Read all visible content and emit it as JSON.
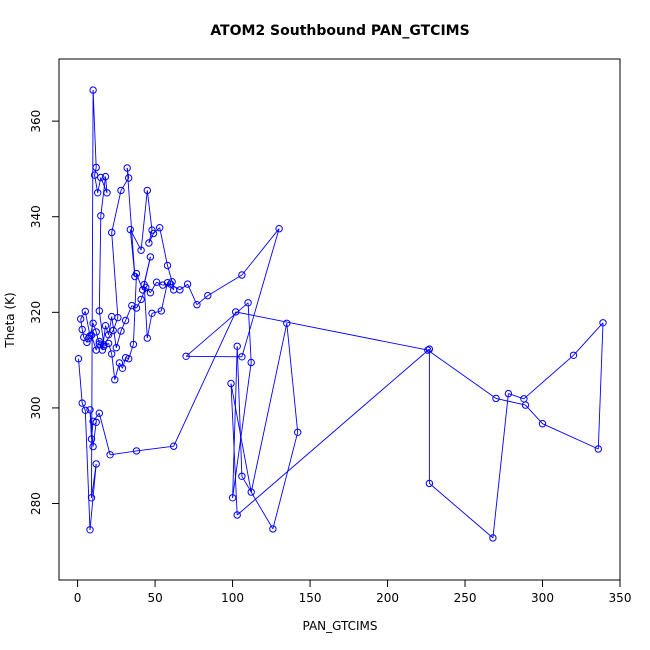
{
  "chart_data": {
    "type": "scatter",
    "title": "ATOM2 Southbound PAN_GTCIMS",
    "xlabel": "PAN_GTCIMS",
    "ylabel": "Theta (K)",
    "xlim": [
      -12,
      350
    ],
    "ylim": [
      264,
      373
    ],
    "xticks": [
      "0",
      "50",
      "100",
      "150",
      "200",
      "250",
      "300",
      "350"
    ],
    "yticks": [
      "280",
      "300",
      "320",
      "340",
      "360"
    ],
    "grid": false,
    "color": "#0000ff",
    "series": [
      {
        "x": [
          0.6,
          3,
          5,
          8,
          12,
          9,
          10,
          12,
          11,
          13,
          15,
          19,
          18,
          15,
          14,
          17,
          23,
          26,
          22,
          28,
          33,
          32,
          37,
          34,
          41,
          45,
          48,
          46,
          49,
          53,
          58,
          61,
          62,
          58,
          54,
          48,
          45,
          43,
          47,
          42,
          38,
          36,
          33,
          31,
          29,
          27,
          24,
          22,
          20,
          17,
          14,
          12,
          9,
          7,
          6,
          4,
          3,
          2,
          5,
          8,
          10,
          12,
          14,
          16,
          18,
          20,
          22,
          25,
          28,
          31,
          35,
          38,
          41,
          44,
          47,
          51,
          55,
          60,
          66,
          71,
          77,
          84,
          106,
          130,
          106,
          70,
          110,
          112,
          100,
          103,
          106,
          126,
          142,
          135,
          112,
          99,
          103,
          227,
          227,
          268,
          278,
          288,
          320,
          339,
          336,
          300,
          289,
          270,
          226,
          102,
          62,
          38,
          21,
          14,
          10,
          9,
          8,
          10,
          12
        ],
        "y": [
          310.3,
          301,
          299.5,
          274.5,
          288.3,
          281.2,
          366.5,
          350.3,
          348.7,
          345,
          348.2,
          345,
          348.4,
          340.2,
          320.3,
          313.2,
          316.2,
          318.9,
          336.7,
          345.5,
          348.1,
          350.2,
          327.5,
          337.3,
          333,
          345.5,
          337.2,
          334.5,
          336.5,
          337.7,
          329.8,
          326.4,
          324.7,
          326.2,
          320.3,
          319.8,
          314.6,
          325.8,
          331.6,
          324.7,
          328.1,
          313.3,
          310.3,
          310.5,
          308.3,
          309.4,
          305.9,
          311.3,
          313.5,
          312.9,
          313.9,
          312.1,
          315.2,
          314.5,
          313.7,
          314.8,
          316.4,
          318.6,
          320.2,
          315.1,
          317.7,
          315.9,
          313.4,
          312.1,
          317.2,
          315.3,
          319.1,
          312.6,
          316.1,
          318.3,
          321.4,
          320.9,
          322.7,
          325.2,
          324.1,
          326.3,
          325.7,
          325.9,
          324.7,
          325.9,
          321.6,
          323.5,
          327.8,
          337.5,
          310.7,
          310.8,
          322.0,
          309.5,
          281.2,
          312.9,
          285.7,
          274.7,
          294.9,
          317.7,
          282.4,
          305.1,
          277.6,
          312.3,
          284.2,
          272.8,
          303.0,
          301.9,
          311.0,
          317.8,
          291.4,
          296.7,
          300.6,
          302.0,
          312.1,
          320.1,
          292.0,
          291.0,
          290.2,
          298.9,
          297.2,
          293.5,
          299.6,
          291.9,
          297.0
        ]
      }
    ]
  }
}
